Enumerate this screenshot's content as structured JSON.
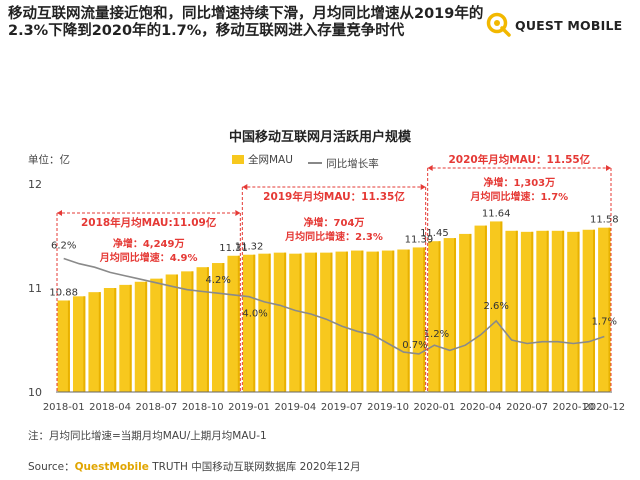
{
  "headline": "移动互联网流量接近饱和，同比增速持续下滑，月均同比增速从2019年的2.3%下降到2020年的1.7%，移动互联网进入存量竞争时代",
  "logo": {
    "text": "QUEST MOBILE",
    "icon": "questmobile-logo-icon"
  },
  "unit_label": "单位：亿",
  "legend": {
    "bar": "全网MAU",
    "line": "同比增长率"
  },
  "colors": {
    "bar": "#f7c81e",
    "bar_dark": "#e8b100",
    "line": "#8a8a8a",
    "accent": "#e53935",
    "annot_text": "#e53935"
  },
  "footnote": "注：月均同比增速=当期月均MAU/上期月均MAU-1",
  "source": {
    "prefix": "Source：",
    "brand": "QuestMobile",
    "rest": " TRUTH 中国移动互联网数据库 2020年12月"
  },
  "chart_data": {
    "type": "bar",
    "title": "中国移动互联网月活跃用户规模",
    "ylabel": "单位：亿",
    "ylim": [
      10,
      12
    ],
    "yticks": [
      "10",
      "11",
      "12"
    ],
    "categories": [
      "2018-01",
      "2018-02",
      "2018-03",
      "2018-04",
      "2018-05",
      "2018-06",
      "2018-07",
      "2018-08",
      "2018-09",
      "2018-10",
      "2018-11",
      "2018-12",
      "2019-01",
      "2019-02",
      "2019-03",
      "2019-04",
      "2019-05",
      "2019-06",
      "2019-07",
      "2019-08",
      "2019-09",
      "2019-10",
      "2019-11",
      "2019-12",
      "2020-01",
      "2020-02",
      "2020-03",
      "2020-04",
      "2020-05",
      "2020-06",
      "2020-07",
      "2020-08",
      "2020-09",
      "2020-10",
      "2020-11",
      "2020-12"
    ],
    "xtick_labels": [
      "2018-01",
      "",
      "",
      "2018-04",
      "",
      "",
      "2018-07",
      "",
      "",
      "2018-10",
      "",
      "",
      "2019-01",
      "",
      "",
      "2019-04",
      "",
      "",
      "2019-07",
      "",
      "",
      "2019-10",
      "",
      "",
      "2020-01",
      "",
      "",
      "2020-04",
      "",
      "",
      "2020-07",
      "",
      "",
      "2020-10",
      "",
      "2020-12"
    ],
    "series": [
      {
        "name": "全网MAU",
        "type": "bar",
        "values": [
          10.88,
          10.92,
          10.96,
          11.0,
          11.03,
          11.06,
          11.09,
          11.13,
          11.16,
          11.2,
          11.24,
          11.31,
          11.32,
          11.33,
          11.34,
          11.33,
          11.34,
          11.34,
          11.35,
          11.36,
          11.35,
          11.36,
          11.37,
          11.39,
          11.45,
          11.48,
          11.52,
          11.6,
          11.64,
          11.55,
          11.54,
          11.55,
          11.55,
          11.54,
          11.56,
          11.58
        ],
        "labels": {
          "0": "10.88",
          "11": "11.31",
          "12": "11.32",
          "23": "11.39",
          "24": "11.45",
          "28": "11.64",
          "35": "11.58"
        }
      },
      {
        "name": "同比增长率",
        "type": "line",
        "values": [
          6.2,
          5.9,
          5.7,
          5.4,
          5.2,
          5.0,
          4.8,
          4.6,
          4.4,
          4.3,
          4.2,
          4.1,
          4.0,
          3.7,
          3.5,
          3.2,
          3.0,
          2.7,
          2.3,
          2.0,
          1.8,
          1.3,
          0.8,
          0.7,
          1.2,
          0.9,
          1.2,
          1.8,
          2.6,
          1.5,
          1.3,
          1.4,
          1.4,
          1.3,
          1.4,
          1.7
        ],
        "labels": {
          "0": "6.2%",
          "10": "4.2%",
          "12": "4.0%",
          "23": "0.7%",
          "24": "1.2%",
          "28": "2.6%",
          "35": "1.7%"
        }
      }
    ],
    "annotations": [
      {
        "title": "2018年月均MAU:11.09亿",
        "lines": [
          "净增：4,249万",
          "月均同比增速：4.9%"
        ],
        "from": 0,
        "to": 11
      },
      {
        "title": "2019年月均MAU：11.35亿",
        "lines": [
          "净增：704万",
          "月均同比增速：2.3%"
        ],
        "from": 12,
        "to": 23
      },
      {
        "title": "2020年月均MAU：11.55亿",
        "lines": [
          "净增：1,303万",
          "月均同比增速：1.7%"
        ],
        "from": 24,
        "to": 35
      }
    ]
  }
}
